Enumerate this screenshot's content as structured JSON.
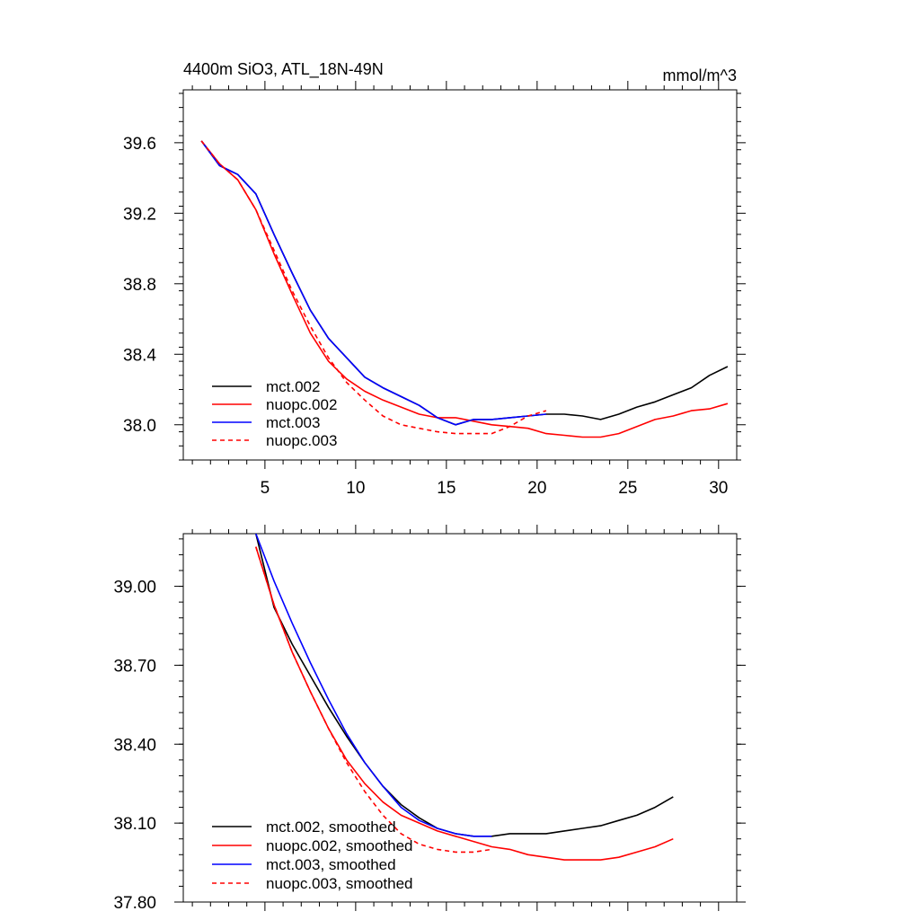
{
  "chart_data": [
    {
      "type": "line",
      "title": "4400m SiO3, ATL_18N-49N",
      "units": "mmol/m^3",
      "xlim": [
        0.5,
        31
      ],
      "ylim": [
        37.8,
        39.9
      ],
      "x_ticks": [
        5,
        10,
        15,
        20,
        25,
        30
      ],
      "x_tick_labels": [
        "5",
        "10",
        "15",
        "20",
        "25",
        "30"
      ],
      "y_ticks": [
        38.0,
        38.4,
        38.8,
        39.2,
        39.6
      ],
      "y_tick_labels": [
        "38.0",
        "38.4",
        "38.8",
        "39.2",
        "39.6"
      ],
      "legend_position": "bottom-left",
      "series": [
        {
          "name": "mct.002",
          "color": "#000000",
          "dash": "solid",
          "x": [
            1.5,
            2.5,
            3.5,
            4.5,
            5.5,
            6.5,
            7.5,
            8.5,
            9.5,
            10.5,
            11.5,
            12.5,
            13.5,
            14.5,
            15.5,
            16.5,
            17.5,
            18.5,
            19.5,
            20.5,
            21.5,
            22.5,
            23.5,
            24.5,
            25.5,
            26.5,
            27.5,
            28.5,
            29.5,
            30.5
          ],
          "y": [
            39.61,
            39.47,
            39.42,
            39.31,
            39.08,
            38.86,
            38.65,
            38.49,
            38.38,
            38.27,
            38.21,
            38.16,
            38.11,
            38.04,
            38.0,
            38.03,
            38.03,
            38.04,
            38.05,
            38.06,
            38.06,
            38.05,
            38.03,
            38.06,
            38.1,
            38.13,
            38.17,
            38.21,
            38.28,
            38.33
          ]
        },
        {
          "name": "nuopc.002",
          "color": "#ff0000",
          "dash": "solid",
          "x": [
            1.5,
            2.5,
            3.5,
            4.5,
            5.5,
            6.5,
            7.5,
            8.5,
            9.5,
            10.5,
            11.5,
            12.5,
            13.5,
            14.5,
            15.5,
            16.5,
            17.5,
            18.5,
            19.5,
            20.5,
            21.5,
            22.5,
            23.5,
            24.5,
            25.5,
            26.5,
            27.5,
            28.5,
            29.5,
            30.5
          ],
          "y": [
            39.61,
            39.48,
            39.39,
            39.22,
            38.97,
            38.74,
            38.52,
            38.36,
            38.26,
            38.19,
            38.14,
            38.1,
            38.06,
            38.04,
            38.04,
            38.02,
            38.0,
            37.99,
            37.98,
            37.95,
            37.94,
            37.93,
            37.93,
            37.95,
            37.99,
            38.03,
            38.05,
            38.08,
            38.09,
            38.12
          ]
        },
        {
          "name": "mct.003",
          "color": "#0000ff",
          "dash": "solid",
          "x": [
            1.5,
            2.5,
            3.5,
            4.5,
            5.5,
            6.5,
            7.5,
            8.5,
            9.5,
            10.5,
            11.5,
            12.5,
            13.5,
            14.5,
            15.5,
            16.5,
            17.5,
            18.5,
            19.5,
            20.5
          ],
          "y": [
            39.61,
            39.47,
            39.42,
            39.31,
            39.08,
            38.86,
            38.65,
            38.49,
            38.38,
            38.27,
            38.21,
            38.16,
            38.11,
            38.04,
            38.0,
            38.03,
            38.03,
            38.04,
            38.05,
            38.06
          ]
        },
        {
          "name": "nuopc.003",
          "color": "#ff0000",
          "dash": "dashed",
          "x": [
            1.5,
            2.5,
            3.5,
            4.5,
            5.5,
            6.5,
            7.5,
            8.5,
            9.5,
            10.5,
            11.5,
            12.5,
            13.5,
            14.5,
            15.5,
            16.5,
            17.5,
            18.5,
            19.5,
            20.5
          ],
          "y": [
            39.61,
            39.48,
            39.39,
            39.22,
            38.99,
            38.76,
            38.56,
            38.38,
            38.24,
            38.14,
            38.05,
            38.0,
            37.98,
            37.96,
            37.95,
            37.95,
            37.95,
            37.99,
            38.05,
            38.08
          ]
        }
      ]
    },
    {
      "type": "line",
      "title": "",
      "xlim": [
        0.5,
        31
      ],
      "ylim": [
        37.8,
        39.2
      ],
      "x_ticks": [
        5,
        10,
        15,
        20,
        25,
        30
      ],
      "x_tick_labels": [],
      "y_ticks": [
        37.8,
        38.1,
        38.4,
        38.7,
        39.0
      ],
      "y_tick_labels": [
        "37.80",
        "38.10",
        "38.40",
        "38.70",
        "39.00"
      ],
      "legend_position": "bottom-left",
      "series": [
        {
          "name": "mct.002, smoothed",
          "color": "#000000",
          "dash": "solid",
          "x": [
            4.5,
            5.5,
            6.5,
            7.5,
            8.5,
            9.5,
            10.5,
            11.5,
            12.5,
            13.5,
            14.5,
            15.5,
            16.5,
            17.5,
            18.5,
            19.5,
            20.5,
            21.5,
            22.5,
            23.5,
            24.5,
            25.5,
            26.5,
            27.5
          ],
          "y": [
            39.2,
            38.92,
            38.78,
            38.66,
            38.54,
            38.43,
            38.33,
            38.24,
            38.17,
            38.12,
            38.08,
            38.06,
            38.05,
            38.05,
            38.06,
            38.06,
            38.06,
            38.07,
            38.08,
            38.09,
            38.11,
            38.13,
            38.16,
            38.2
          ]
        },
        {
          "name": "nuopc.002, smoothed",
          "color": "#ff0000",
          "dash": "solid",
          "x": [
            4.5,
            5.5,
            6.5,
            7.5,
            8.5,
            9.5,
            10.5,
            11.5,
            12.5,
            13.5,
            14.5,
            15.5,
            16.5,
            17.5,
            18.5,
            19.5,
            20.5,
            21.5,
            22.5,
            23.5,
            24.5,
            25.5,
            26.5,
            27.5
          ],
          "y": [
            39.15,
            38.93,
            38.75,
            38.6,
            38.46,
            38.34,
            38.25,
            38.18,
            38.13,
            38.1,
            38.07,
            38.05,
            38.03,
            38.01,
            38.0,
            37.98,
            37.97,
            37.96,
            37.96,
            37.96,
            37.97,
            37.99,
            38.01,
            38.04
          ]
        },
        {
          "name": "mct.003, smoothed",
          "color": "#0000ff",
          "dash": "solid",
          "x": [
            4.5,
            5.5,
            6.5,
            7.5,
            8.5,
            9.5,
            10.5,
            11.5,
            12.5,
            13.5,
            14.5,
            15.5,
            16.5,
            17.5
          ],
          "y": [
            39.2,
            39.02,
            38.86,
            38.71,
            38.57,
            38.44,
            38.33,
            38.24,
            38.16,
            38.11,
            38.08,
            38.06,
            38.05,
            38.05
          ]
        },
        {
          "name": "nuopc.003, smoothed",
          "color": "#ff0000",
          "dash": "dashed",
          "x": [
            4.5,
            5.5,
            6.5,
            7.5,
            8.5,
            9.5,
            10.5,
            11.5,
            12.5,
            13.5,
            14.5,
            15.5,
            16.5,
            17.5
          ],
          "y": [
            39.15,
            38.93,
            38.75,
            38.6,
            38.46,
            38.33,
            38.22,
            38.13,
            38.06,
            38.02,
            38.0,
            37.99,
            37.99,
            38.0
          ]
        }
      ]
    }
  ]
}
